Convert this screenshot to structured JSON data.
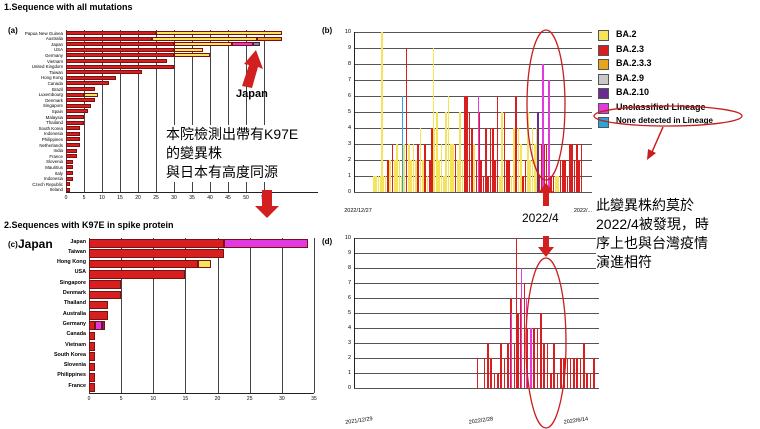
{
  "section1_title": "1.Sequence with all mutations",
  "section2_title": "2.Sequences with K97E in spike protein",
  "panel_labels": {
    "a": "(a)",
    "b": "(b)",
    "c": "(c)",
    "d": "(d)"
  },
  "annotations": {
    "japan_arrow_label": "Japan",
    "japan_label_c": "Japan",
    "cn_block_1": [
      "本院檢測出帶有K97E",
      "的變異株",
      "與日本有高度同源"
    ],
    "cn_block_2": [
      "此變異株約莫於",
      "2022/4被發現，時",
      "序上也與台灣疫情",
      "演進相符"
    ],
    "date_callout": "2022/4"
  },
  "legend": [
    {
      "label": "BA.2",
      "color": "#f5e35a"
    },
    {
      "label": "BA.2.3",
      "color": "#d81f1f"
    },
    {
      "label": "BA.2.3.3",
      "color": "#e8a51b"
    },
    {
      "label": "BA.2.9",
      "color": "#c8c8c8"
    },
    {
      "label": "BA.2.10",
      "color": "#6a2c91"
    },
    {
      "label": "Unclassified Lineage",
      "color": "#e13be0"
    },
    {
      "label": "None detected in Lineage",
      "color": "#27a6de"
    }
  ],
  "colors": {
    "ba2": "#f5e35a",
    "ba23": "#d81f1f",
    "ba233": "#e8a51b",
    "ba210": "#6a2c91",
    "uncl": "#e13be0",
    "none": "#27a6de",
    "arrow": "#d22020"
  },
  "chart_data": [
    {
      "id": "a",
      "type": "bar",
      "orientation": "horizontal",
      "stacked": true,
      "categories": [
        "Papua New Guinea",
        "Australia",
        "Japan",
        "USA",
        "Germany",
        "Vietnam",
        "United Kingdom",
        "Taiwan",
        "Hong Kong",
        "Canada",
        "Brazil",
        "Luxembourg",
        "Denmark",
        "Singapore",
        "Spain",
        "Malaysia",
        "Thailand",
        "South Korea",
        "Indonesia",
        "Philippines",
        "Netherlands",
        "India",
        "France",
        "Slovenia",
        "Mauritius",
        "Italy",
        "Indonesia",
        "Czech Republic",
        "Ireland"
      ],
      "series": [
        {
          "color": "#d81f1f",
          "values": [
            25,
            24,
            30,
            30,
            30,
            28,
            30,
            21,
            14,
            12,
            8,
            5,
            8,
            7,
            6,
            5,
            5,
            4,
            4,
            4,
            4,
            3,
            3,
            2,
            2,
            2,
            2,
            1,
            1
          ]
        },
        {
          "color": "#f5e35a",
          "values": [
            35,
            29,
            16,
            8,
            10,
            0,
            0,
            0,
            0,
            0,
            0,
            4,
            0,
            0,
            0,
            0,
            0,
            0,
            0,
            0,
            0,
            0,
            0,
            0,
            0,
            0,
            0,
            0,
            0
          ]
        },
        {
          "color": "#e8a51b",
          "values": [
            0,
            7,
            0,
            0,
            0,
            0,
            0,
            0,
            0,
            0,
            0,
            0,
            0,
            0,
            0,
            0,
            0,
            0,
            0,
            0,
            0,
            0,
            0,
            0,
            0,
            0,
            0,
            0,
            0
          ]
        },
        {
          "color": "#e13be0",
          "values": [
            0,
            0,
            6,
            0,
            0,
            0,
            0,
            0,
            0,
            0,
            0,
            0,
            0,
            0,
            0,
            0,
            0,
            0,
            0,
            0,
            0,
            0,
            0,
            0,
            0,
            0,
            0,
            0,
            0
          ]
        },
        {
          "color": "#27a6de",
          "values": [
            0,
            0,
            2,
            0,
            0,
            0,
            0,
            0,
            0,
            0,
            0,
            0,
            0,
            0,
            0,
            0,
            0,
            0,
            0,
            0,
            0,
            0,
            0,
            0,
            0,
            0,
            0,
            0,
            0
          ]
        }
      ],
      "xticks": [
        "0",
        "5",
        "10",
        "15",
        "20",
        "25",
        "30",
        "35",
        "40",
        "45",
        "50",
        "55"
      ],
      "xlim": [
        0,
        70
      ]
    },
    {
      "id": "b",
      "type": "bar",
      "x_start": "2022/12/27",
      "x_end": "2022/...",
      "yticks": [
        "0",
        "1",
        "2",
        "3",
        "4",
        "5",
        "6",
        "7",
        "8",
        "9",
        "10"
      ],
      "ylim": [
        0,
        10
      ]
    },
    {
      "id": "c",
      "type": "bar",
      "orientation": "horizontal",
      "stacked": true,
      "categories": [
        "Japan",
        "Taiwan",
        "Hong Kong",
        "USA",
        "Singapore",
        "Denmark",
        "Thailand",
        "Australia",
        "Germany",
        "Canada",
        "Vietnam",
        "South Korea",
        "Slovenia",
        "Philippines",
        "France"
      ],
      "series": [
        {
          "color": "#d81f1f",
          "values": [
            21,
            21,
            17,
            15,
            5,
            5,
            3,
            3,
            1,
            1,
            1,
            1,
            1,
            1,
            1
          ]
        },
        {
          "color": "#e13be0",
          "values": [
            13,
            0,
            0,
            0,
            0,
            0,
            0,
            0,
            1,
            0,
            0,
            0,
            0,
            0,
            0
          ]
        },
        {
          "color": "#f5e35a",
          "values": [
            0,
            0,
            2,
            0,
            0,
            0,
            0,
            0,
            0,
            0,
            0,
            0,
            0,
            0,
            0
          ]
        },
        {
          "color": "#6a2c91",
          "values": [
            0,
            0,
            0,
            0,
            0,
            0,
            0,
            0,
            0.5,
            0,
            0,
            0,
            0,
            0,
            0
          ]
        }
      ],
      "xticks": [
        "0",
        "5",
        "10",
        "15",
        "20",
        "25",
        "30",
        "35"
      ],
      "xlim": [
        0,
        35
      ]
    },
    {
      "id": "d",
      "type": "bar",
      "xticks": [
        "2021/12/29",
        "2022/2/28",
        "2022/6/14"
      ],
      "yticks": [
        "0",
        "1",
        "2",
        "3",
        "4",
        "5",
        "6",
        "7",
        "8",
        "9",
        "10"
      ],
      "ylim": [
        0,
        10
      ]
    }
  ]
}
